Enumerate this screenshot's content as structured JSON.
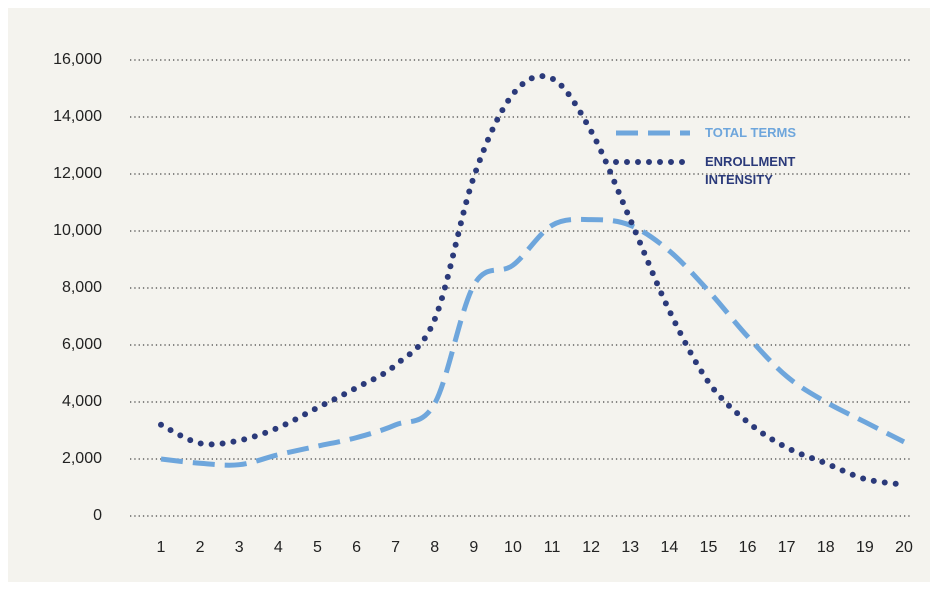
{
  "chart_data": {
    "type": "line",
    "categories": [
      1,
      2,
      3,
      4,
      5,
      6,
      7,
      8,
      9,
      10,
      11,
      12,
      13,
      14,
      15,
      16,
      17,
      18,
      19,
      20
    ],
    "series": [
      {
        "name": "TOTAL TERMS",
        "color": "#6ea6dc",
        "style": "dashed",
        "values": [
          2000,
          1850,
          1800,
          2150,
          2450,
          2750,
          3200,
          3950,
          8100,
          8800,
          10200,
          10400,
          10200,
          9300,
          7900,
          6300,
          4900,
          4000,
          3300,
          2600
        ]
      },
      {
        "name": "ENROLLMENT INTENSITY",
        "color": "#2b3a7a",
        "style": "dotted",
        "values": [
          3200,
          2550,
          2650,
          3100,
          3800,
          4500,
          5300,
          6900,
          11900,
          14800,
          15350,
          13500,
          10400,
          7200,
          4700,
          3300,
          2400,
          1850,
          1300,
          1100
        ]
      }
    ],
    "ylim": [
      0,
      16000
    ],
    "yticks": [
      0,
      {
        "value": 2000,
        "label": "2,000"
      },
      {
        "value": 4000,
        "label": "4,000"
      },
      {
        "value": 6000,
        "label": "6,000"
      },
      {
        "value": 8000,
        "label": "8,000"
      },
      {
        "value": 10000,
        "label": "10,000"
      },
      {
        "value": 12000,
        "label": "12,000"
      },
      {
        "value": 14000,
        "label": "14,000"
      },
      {
        "value": 16000,
        "label": "16,000"
      }
    ],
    "grid": true,
    "legend": "upper right"
  }
}
